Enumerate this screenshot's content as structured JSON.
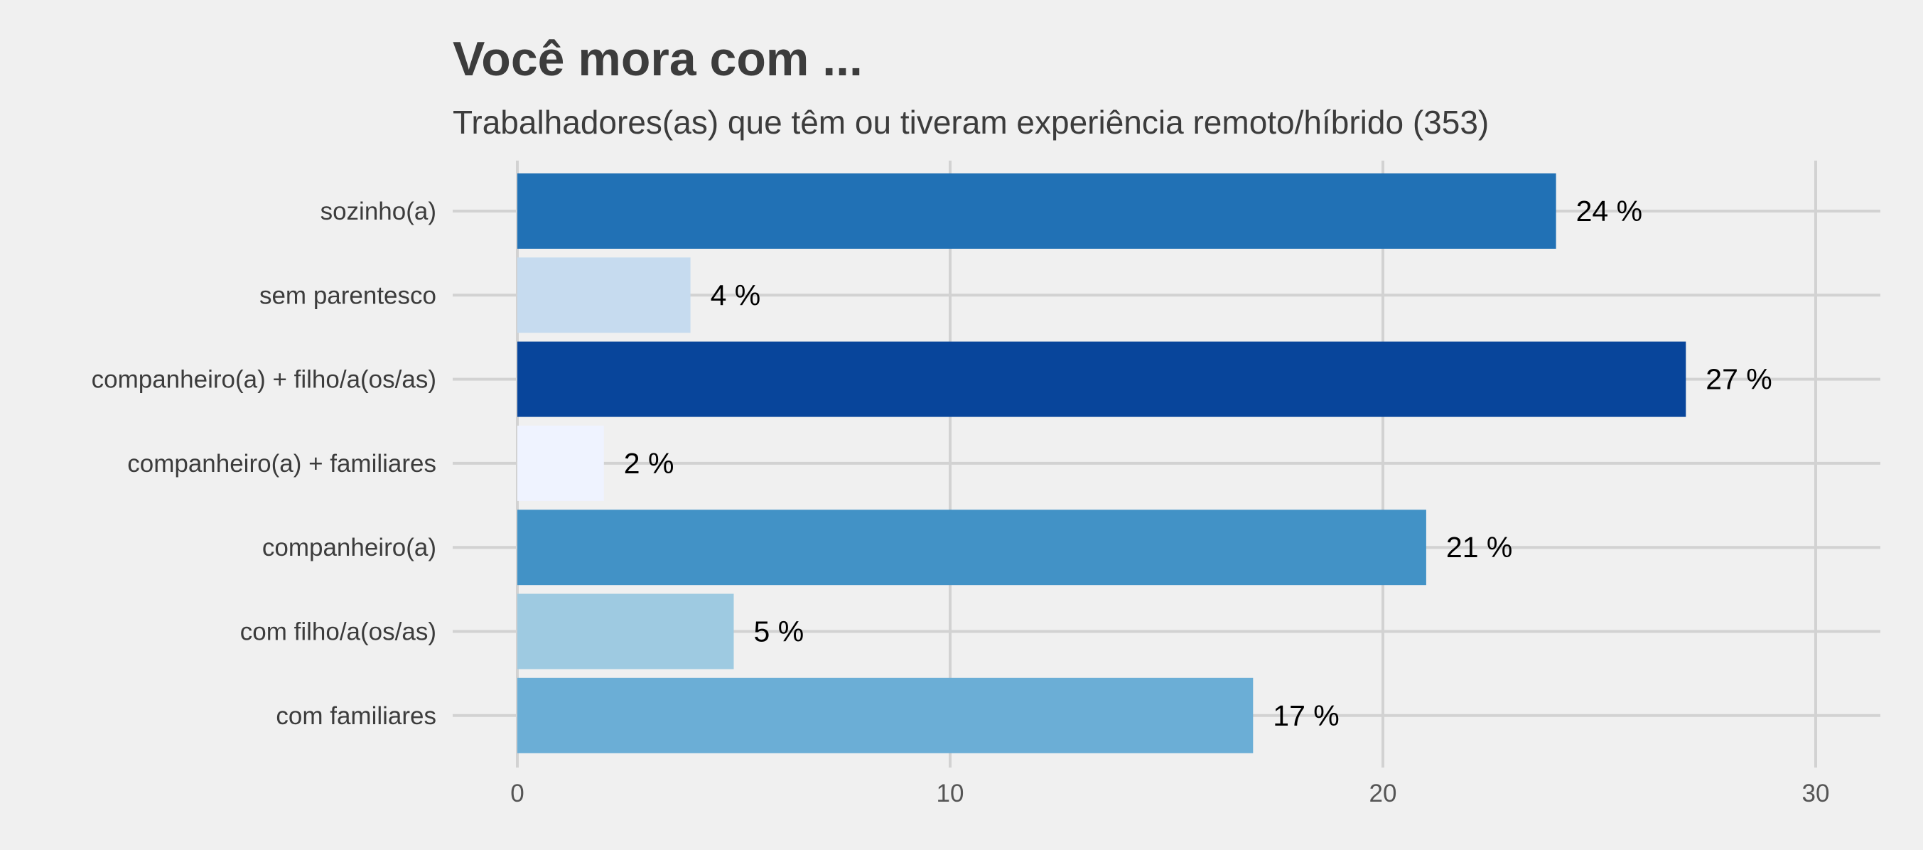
{
  "chart_data": {
    "type": "bar",
    "orientation": "horizontal",
    "title": "Você mora com ...",
    "subtitle": "Trabalhadores(as) que têm ou tiveram experiência remoto/híbrido (353)",
    "xlabel": "",
    "ylabel": "",
    "xlim": [
      0,
      31.5
    ],
    "xticks": [
      0,
      10,
      20,
      30
    ],
    "grid": true,
    "categories": [
      "sozinho(a)",
      "sem parentesco",
      "companheiro(a) + filho/a(os/as)",
      "companheiro(a) + familiares",
      "companheiro(a)",
      "com filho/a(os/as)",
      "com familiares"
    ],
    "values": [
      24,
      4,
      27,
      2,
      21,
      5,
      17
    ],
    "data_labels": [
      "24 %",
      "4 %",
      "27 %",
      "2 %",
      "21 %",
      "5 %",
      "17 %"
    ],
    "colors": [
      "#2171b5",
      "#c6dbef",
      "#08459b",
      "#eff3ff",
      "#4292c6",
      "#9ecae1",
      "#6baed6"
    ]
  }
}
